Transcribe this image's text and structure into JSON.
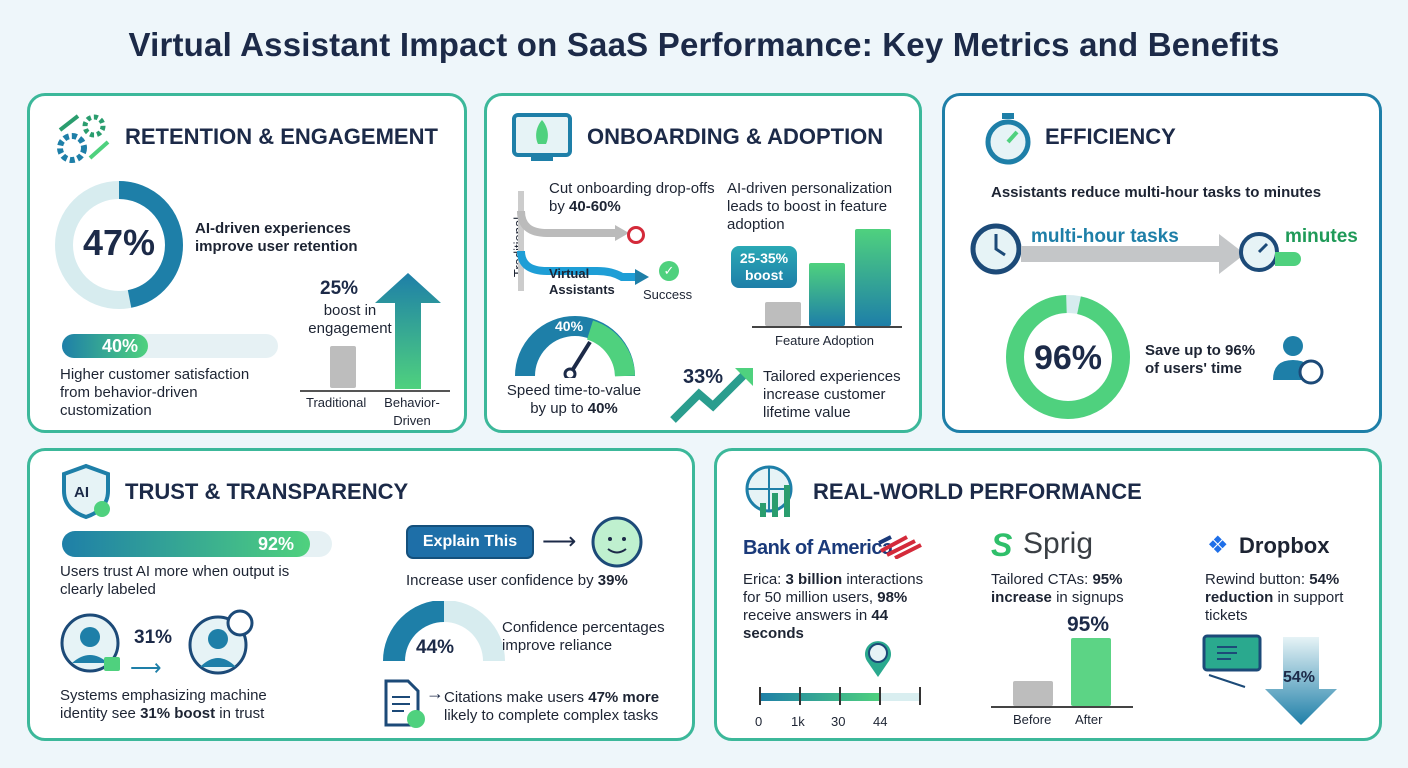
{
  "title": "Virtual Assistant Impact on SaaS Performance: Key Metrics and Benefits",
  "colors": {
    "navy": "#1c2a48",
    "teal": "#1e7fa8",
    "green": "#4fd17e",
    "gray": "#bdbdbd",
    "border": "#3cb89a"
  },
  "retention": {
    "heading": "RETENTION & ENGAGEMENT",
    "icon": "gears-arrows-icon",
    "ring_value": "47%",
    "ring_fraction": 0.47,
    "ring_text": "AI-driven experiences improve user retention",
    "bar_value": "40%",
    "bar_fraction": 0.4,
    "bar_text": "Higher customer satisfaction from behavior-driven customization",
    "boost_value": "25%",
    "boost_text": "boost in engagement",
    "cat_traditional": "Traditional",
    "cat_behavior": "Behavior-Driven"
  },
  "onboarding": {
    "heading": "ONBOARDING & ADOPTION",
    "icon": "rocket-screen-icon",
    "dropoff_text": "Cut onboarding drop-offs by",
    "dropoff_value": "40-60%",
    "traditional": "Traditional",
    "virtual": "Virtual Assistants",
    "success": "Success",
    "personalization_text": "AI-driven personalization leads to boost in feature adoption",
    "boost_bubble": "25-35% boost",
    "feature_label": "Feature Adoption",
    "gauge_value": "40%",
    "gauge_text": "Speed time-to-value by up to",
    "gauge_bold": "40%",
    "ltv_value": "33%",
    "ltv_text": "Tailored experiences increase customer lifetime value"
  },
  "efficiency": {
    "heading": "EFFICIENCY",
    "icon": "stopwatch-icon",
    "subtitle": "Assistants reduce multi-hour tasks to minutes",
    "from": "multi-hour tasks",
    "to": "minutes",
    "ring_value": "96%",
    "ring_fraction": 0.96,
    "ring_text": "Save up to 96% of users' time"
  },
  "trust": {
    "heading": "TRUST & TRANSPARENCY",
    "icon": "ai-shield-icon",
    "bar_value": "92%",
    "bar_fraction": 0.92,
    "bar_text": "Users trust AI more when output is clearly labeled",
    "identity_value": "31%",
    "identity_text_1": "Systems emphasizing machine identity see",
    "identity_bold": "31% boost",
    "identity_text_2": "in trust",
    "explain_button": "Explain This",
    "confidence_text": "Increase user confidence by",
    "confidence_bold": "39%",
    "gauge_value": "44%",
    "gauge_text": "Confidence percentages improve reliance",
    "citations_text_1": "Citations make users",
    "citations_bold": "47% more",
    "citations_text_2": "likely to complete complex tasks"
  },
  "realworld": {
    "heading": "REAL-WORLD PERFORMANCE",
    "icon": "globe-chart-icon",
    "boa": {
      "logo": "Bank of America",
      "t1": "Erica:",
      "b1": "3 billion",
      "t2": "interactions for 50 million users,",
      "b2": "98%",
      "t3": "receive answers in",
      "b3": "44",
      "t4": "seconds",
      "ticks": [
        "0",
        "1k",
        "30",
        "44"
      ]
    },
    "sprig": {
      "logo": "Sprig",
      "t1": "Tailored CTAs:",
      "b1": "95% increase",
      "t2": "in signups",
      "value": "95%",
      "cats": [
        "Before",
        "After"
      ]
    },
    "dropbox": {
      "logo": "Dropbox",
      "t1": "Rewind button:",
      "b1": "54% reduction",
      "t2": "in support tickets",
      "value": "54%"
    }
  }
}
